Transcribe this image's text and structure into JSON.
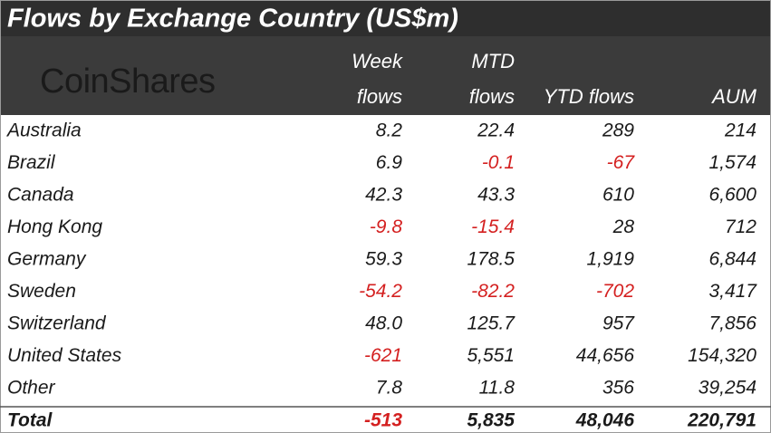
{
  "header": {
    "title": "Flows by Exchange Country (US$m)",
    "logo": "CoinShares",
    "columns": [
      [
        "Week",
        "flows"
      ],
      [
        "MTD",
        "flows"
      ],
      [
        "YTD flows"
      ],
      [
        "AUM"
      ]
    ]
  },
  "table": {
    "rows": [
      [
        "Australia",
        "8.2",
        "22.4",
        "289",
        "214"
      ],
      [
        "Brazil",
        "6.9",
        "-0.1",
        "-67",
        "1,574"
      ],
      [
        "Canada",
        "42.3",
        "43.3",
        "610",
        "6,600"
      ],
      [
        "Hong Kong",
        "-9.8",
        "-15.4",
        "28",
        "712"
      ],
      [
        "Germany",
        "59.3",
        "178.5",
        "1,919",
        "6,844"
      ],
      [
        "Sweden",
        "-54.2",
        "-82.2",
        "-702",
        "3,417"
      ],
      [
        "Switzerland",
        "48.0",
        "125.7",
        "957",
        "7,856"
      ],
      [
        "United States",
        "-621",
        "5,551",
        "44,656",
        "154,320"
      ],
      [
        "Other",
        "7.8",
        "11.8",
        "356",
        "39,254"
      ]
    ],
    "total": [
      "Total",
      "-513",
      "5,835",
      "48,046",
      "220,791"
    ]
  }
}
